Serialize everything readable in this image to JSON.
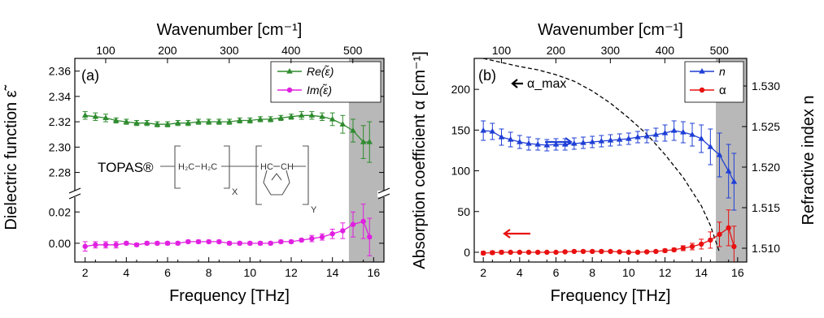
{
  "chart_data": [
    {
      "type": "line",
      "panel_label": "(a)",
      "xlabel": "Frequency [THz]",
      "top_xlabel": "Wavenumber [cm⁻¹]",
      "ylabel": "Dielectric function ε̃",
      "xlim": [
        1.5,
        16.5
      ],
      "xticks": [
        2,
        4,
        6,
        8,
        10,
        12,
        14,
        16
      ],
      "top_ticks": [
        100,
        200,
        300,
        400,
        500
      ],
      "ylim_upper": [
        2.265,
        2.37
      ],
      "yticks_upper": [
        "2.28",
        "2.30",
        "2.32",
        "2.34",
        "2.36"
      ],
      "ylim_lower": [
        -0.012,
        0.03
      ],
      "yticks_lower": [
        "0.00",
        "0.02"
      ],
      "shaded_region": [
        14.8,
        16.5
      ],
      "legend_position": "top-right",
      "inset_text": "TOPAS®",
      "formula_labels": {
        "a": "H₂C",
        "b": "H₂C",
        "c": "HC",
        "d": "CH",
        "x": "X",
        "y": "Y"
      },
      "series": [
        {
          "name": "Re(ε̃)",
          "color": "#2e8b2e",
          "marker": "triangle",
          "x": [
            2,
            2.5,
            3,
            3.5,
            4,
            4.5,
            5,
            5.5,
            6,
            6.5,
            7,
            7.5,
            8,
            8.5,
            9,
            9.5,
            10,
            10.5,
            11,
            11.5,
            12,
            12.5,
            13,
            13.5,
            14,
            14.5,
            15,
            15.5,
            15.8
          ],
          "y": [
            2.325,
            2.324,
            2.323,
            2.321,
            2.32,
            2.319,
            2.319,
            2.318,
            2.318,
            2.319,
            2.319,
            2.32,
            2.32,
            2.32,
            2.32,
            2.321,
            2.321,
            2.322,
            2.322,
            2.323,
            2.324,
            2.325,
            2.325,
            2.324,
            2.322,
            2.318,
            2.313,
            2.304,
            2.304
          ],
          "err": [
            0.003,
            0.003,
            0.003,
            0.002,
            0.002,
            0.002,
            0.002,
            0.002,
            0.002,
            0.002,
            0.002,
            0.002,
            0.002,
            0.002,
            0.002,
            0.002,
            0.002,
            0.002,
            0.002,
            0.002,
            0.002,
            0.003,
            0.003,
            0.003,
            0.005,
            0.007,
            0.009,
            0.013,
            0.016
          ]
        },
        {
          "name": "Im(ε̃)",
          "color": "#e020e0",
          "marker": "circle",
          "x": [
            2,
            2.5,
            3,
            3.5,
            4,
            4.5,
            5,
            5.5,
            6,
            6.5,
            7,
            7.5,
            8,
            8.5,
            9,
            9.5,
            10,
            10.5,
            11,
            11.5,
            12,
            12.5,
            13,
            13.5,
            14,
            14.5,
            15,
            15.5,
            15.8
          ],
          "y": [
            -0.002,
            -0.001,
            -0.001,
            -0.001,
            0.0,
            -0.001,
            0.0,
            0.0,
            0.0,
            0.0,
            0.001,
            0.001,
            0.001,
            0.001,
            0.0,
            0.0,
            0.0,
            0.0,
            0.0,
            0.001,
            0.001,
            0.002,
            0.003,
            0.004,
            0.006,
            0.008,
            0.012,
            0.014,
            0.004
          ],
          "err": [
            0.003,
            0.002,
            0.002,
            0.002,
            0.001,
            0.001,
            0.001,
            0.001,
            0.001,
            0.001,
            0.001,
            0.001,
            0.001,
            0.001,
            0.001,
            0.001,
            0.001,
            0.001,
            0.001,
            0.001,
            0.001,
            0.001,
            0.002,
            0.002,
            0.003,
            0.005,
            0.008,
            0.011,
            0.012
          ]
        }
      ]
    },
    {
      "type": "line",
      "panel_label": "(b)",
      "xlabel": "Frequency [THz]",
      "top_xlabel": "Wavenumber [cm⁻¹]",
      "ylabel": "Absorption coefficient α [cm⁻¹]",
      "ylabel_right": "Refractive index n",
      "xlim": [
        1.5,
        16.5
      ],
      "xticks": [
        2,
        4,
        6,
        8,
        10,
        12,
        14,
        16
      ],
      "top_ticks": [
        100,
        200,
        300,
        400,
        500
      ],
      "ylim_left": [
        -12,
        238
      ],
      "yticks_left": [
        0,
        50,
        100,
        150,
        200
      ],
      "ylim_right": [
        1.5083,
        1.5334
      ],
      "yticks_right": [
        "1.510",
        "1.515",
        "1.520",
        "1.525",
        "1.530"
      ],
      "shaded_region": [
        14.8,
        16.5
      ],
      "legend_position": "top-right",
      "annotation": "α_max",
      "series": [
        {
          "name": "n",
          "color": "#1f3fd6",
          "marker": "triangle",
          "axis": "right",
          "x": [
            2,
            2.5,
            3,
            3.5,
            4,
            4.5,
            5,
            5.5,
            6,
            6.5,
            7,
            7.5,
            8,
            8.5,
            9,
            9.5,
            10,
            10.5,
            11,
            11.5,
            12,
            12.5,
            13,
            13.5,
            14,
            14.5,
            15,
            15.5,
            15.8
          ],
          "y": [
            1.5245,
            1.5244,
            1.5237,
            1.5234,
            1.5231,
            1.5229,
            1.5228,
            1.5227,
            1.5228,
            1.5228,
            1.5229,
            1.523,
            1.5231,
            1.5232,
            1.5233,
            1.5234,
            1.5235,
            1.5237,
            1.5238,
            1.524,
            1.5242,
            1.5245,
            1.5243,
            1.524,
            1.5235,
            1.5225,
            1.5215,
            1.5195,
            1.5182
          ],
          "err": [
            0.0012,
            0.001,
            0.001,
            0.0009,
            0.0008,
            0.0008,
            0.0007,
            0.0007,
            0.0007,
            0.0007,
            0.0007,
            0.0007,
            0.0007,
            0.0007,
            0.0007,
            0.0007,
            0.0007,
            0.0007,
            0.0008,
            0.0008,
            0.001,
            0.0012,
            0.0013,
            0.0014,
            0.0017,
            0.0022,
            0.0027,
            0.0033,
            0.0035
          ]
        },
        {
          "name": "α",
          "color": "#e81010",
          "marker": "circle",
          "axis": "left",
          "x": [
            2,
            2.5,
            3,
            3.5,
            4,
            4.5,
            5,
            5.5,
            6,
            6.5,
            7,
            7.5,
            8,
            8.5,
            9,
            9.5,
            10,
            10.5,
            11,
            11.5,
            12,
            12.5,
            13,
            13.5,
            14,
            14.5,
            15,
            15.5,
            15.8
          ],
          "y": [
            -1,
            -0.5,
            0,
            0,
            0,
            0,
            0,
            0,
            0,
            0.5,
            1,
            1,
            1,
            1,
            1,
            0.5,
            0,
            0,
            0.5,
            1,
            2,
            3,
            5,
            7,
            10,
            15,
            22,
            30,
            7
          ],
          "err": [
            2,
            2,
            2,
            1,
            1,
            1,
            1,
            1,
            1,
            1,
            1,
            1,
            1,
            1,
            1,
            1,
            1,
            1,
            1,
            1,
            2,
            2,
            3,
            4,
            6,
            10,
            15,
            22,
            25
          ]
        },
        {
          "name": "α_max",
          "style": "dashed",
          "color": "#000000",
          "axis": "left",
          "x": [
            2,
            3,
            4,
            5,
            6,
            7,
            8,
            9,
            10,
            11,
            12,
            13,
            14,
            14.5,
            15
          ],
          "y": [
            238,
            233,
            228,
            224,
            218,
            210,
            198,
            183,
            165,
            145,
            120,
            92,
            57,
            33,
            0
          ]
        }
      ]
    }
  ]
}
